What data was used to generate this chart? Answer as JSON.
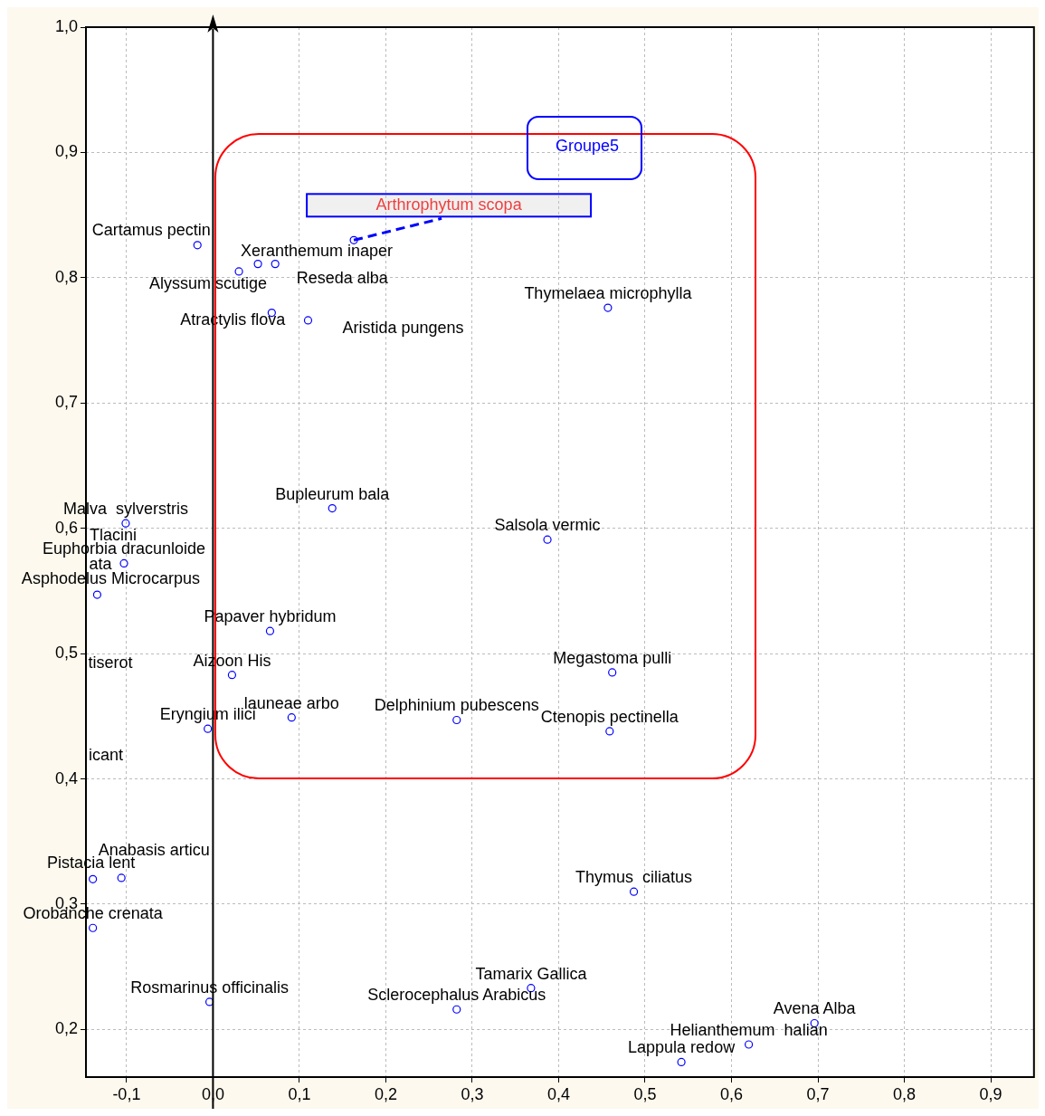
{
  "chart_data": {
    "type": "scatter",
    "x": [
      -0.018,
      0.163,
      0.03,
      0.052,
      0.072,
      0.068,
      0.11,
      0.457,
      0.138,
      0.387,
      -0.101,
      -0.103,
      -0.134,
      0.066,
      0.022,
      0.462,
      -0.006,
      0.091,
      0.282,
      0.459,
      -0.139,
      -0.106,
      -0.139,
      0.487,
      -0.004,
      0.368,
      0.282,
      0.696,
      0.62,
      0.542
    ],
    "series": [
      {
        "color": "#0000ff",
        "values": [
          0.826,
          0.83,
          0.805,
          0.811,
          0.811,
          0.772,
          0.766,
          0.776,
          0.616,
          0.591,
          0.604,
          0.572,
          0.547,
          0.518,
          0.483,
          0.485,
          0.44,
          0.449,
          0.447,
          0.438,
          0.32,
          0.321,
          0.281,
          0.31,
          0.222,
          0.233,
          0.216,
          0.205,
          0.188,
          0.174
        ]
      }
    ],
    "marker": "circle",
    "xlim": [
      -0.147,
      0.95
    ],
    "ylim": [
      0.162,
      1.0
    ],
    "xticks": [
      {
        "value": -0.1,
        "label": "-0,1"
      },
      {
        "value": 0,
        "label": "0,0"
      },
      {
        "value": 0.1,
        "label": "0,1"
      },
      {
        "value": 0.2,
        "label": "0,2"
      },
      {
        "value": 0.3,
        "label": "0,3"
      },
      {
        "value": 0.4,
        "label": "0,4"
      },
      {
        "value": 0.5,
        "label": "0,5"
      },
      {
        "value": 0.6,
        "label": "0,6"
      },
      {
        "value": 0.7,
        "label": "0,7"
      },
      {
        "value": 0.8,
        "label": "0,8"
      },
      {
        "value": 0.9,
        "label": "0,9"
      }
    ],
    "yticks": [
      {
        "value": 0.2,
        "label": "0,2"
      },
      {
        "value": 0.3,
        "label": "0,3"
      },
      {
        "value": 0.4,
        "label": "0,4"
      },
      {
        "value": 0.5,
        "label": "0,5"
      },
      {
        "value": 0.6,
        "label": "0,6"
      },
      {
        "value": 0.7,
        "label": "0,7"
      },
      {
        "value": 0.8,
        "label": "0,8"
      },
      {
        "value": 0.9,
        "label": "0,9"
      },
      {
        "value": 1.0,
        "label": "1,0"
      }
    ],
    "grid": true,
    "legend": false,
    "ref_lines": [
      {
        "axis": "x",
        "value": 0,
        "color": "#000000"
      }
    ],
    "annotations": [
      {
        "text": "Arthrophytum scopa",
        "x": 0.163,
        "y": 0.83
      },
      "Groupe5",
      {
        "text": "Cartamus pectin",
        "x": -0.018,
        "y": 0.826
      },
      {
        "text": "Xeranthemum inaper",
        "x": 0.052,
        "y": 0.811
      },
      {
        "text": "Alyssum scutige",
        "x": 0.03,
        "y": 0.805
      },
      {
        "text": "Reseda alba",
        "x": 0.072,
        "y": 0.811
      },
      {
        "text": "Thymelaea microphylla",
        "x": 0.457,
        "y": 0.776
      },
      {
        "text": "Atractylis flova",
        "x": 0.068,
        "y": 0.772
      },
      {
        "text": "Aristida pungens",
        "x": 0.11,
        "y": 0.766
      },
      {
        "text": "Bupleurum bala",
        "x": 0.138,
        "y": 0.616
      },
      {
        "text": "Salsola vermic",
        "x": 0.387,
        "y": 0.591
      },
      {
        "text": "Malva  sylverstris",
        "x": -0.101,
        "y": 0.604
      },
      "Tlacini",
      {
        "text": "Euphorbia dracunloide",
        "x": -0.103,
        "y": 0.572
      },
      "ata",
      {
        "text": "Asphodelus Microcarpus",
        "x": -0.134,
        "y": 0.547
      },
      {
        "text": "Papaver hybridum",
        "x": 0.066,
        "y": 0.518
      },
      {
        "text": "Aizoon His",
        "x": 0.022,
        "y": 0.483
      },
      {
        "text": "Megastoma pulli",
        "x": 0.462,
        "y": 0.485
      },
      "tiserot",
      {
        "text": "launeae arbo",
        "x": 0.091,
        "y": 0.449
      },
      {
        "text": "Delphinium pubescens",
        "x": 0.282,
        "y": 0.447
      },
      {
        "text": "Eryngium ilici",
        "x": -0.006,
        "y": 0.44
      },
      {
        "text": "Ctenopis pectinella",
        "x": 0.459,
        "y": 0.438
      },
      "icant",
      {
        "text": "Anabasis articu",
        "x": -0.106,
        "y": 0.321
      },
      {
        "text": "Pistacia lent",
        "x": -0.139,
        "y": 0.32
      },
      {
        "text": "Orobanche crenata",
        "x": -0.139,
        "y": 0.281
      },
      {
        "text": "Thymus  ciliatus",
        "x": 0.487,
        "y": 0.31
      },
      {
        "text": "Rosmarinus officinalis",
        "x": -0.004,
        "y": 0.222
      },
      {
        "text": "Tamarix Gallica",
        "x": 0.368,
        "y": 0.233
      },
      {
        "text": "Sclerocephalus Arabicus",
        "x": 0.282,
        "y": 0.216
      },
      {
        "text": "Avena Alba",
        "x": 0.696,
        "y": 0.205
      },
      {
        "text": "Helianthemum  halian",
        "x": 0.62,
        "y": 0.188
      },
      {
        "text": "Lappula redow",
        "x": 0.542,
        "y": 0.174
      }
    ]
  }
}
